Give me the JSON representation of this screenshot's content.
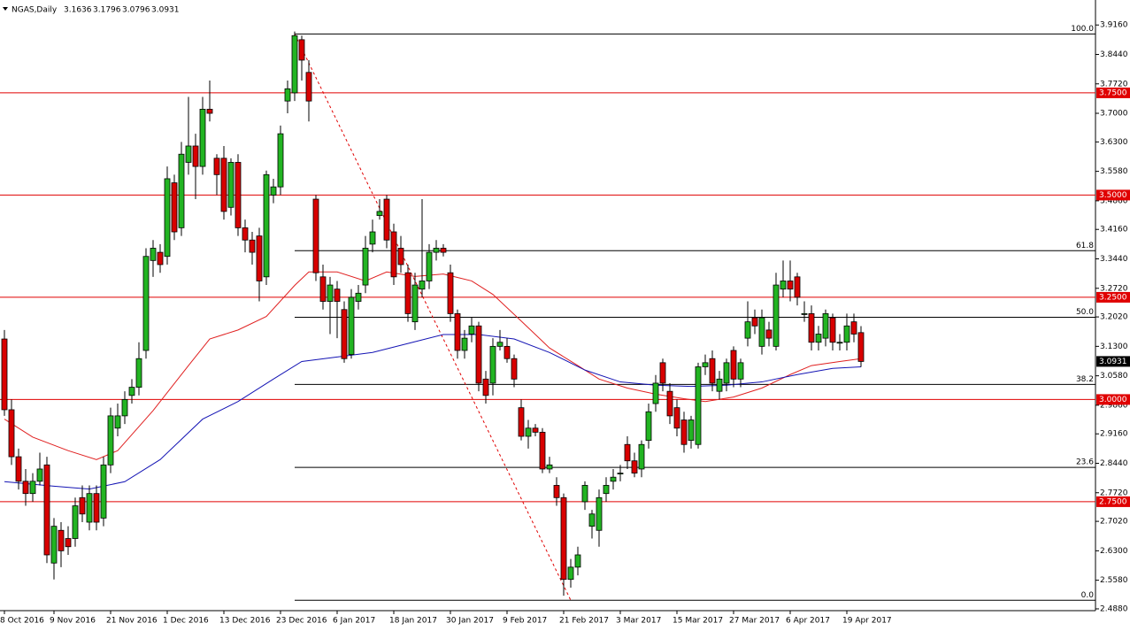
{
  "chart_data": {
    "type": "candlestick",
    "title": "NGAS,Daily",
    "categories": [
      "8 Oct 2016",
      null,
      null,
      null,
      null,
      null,
      null,
      "9 Nov 2016",
      null,
      null,
      null,
      null,
      null,
      null,
      null,
      "21 Nov 2016",
      null,
      null,
      null,
      null,
      null,
      null,
      null,
      "1 Dec 2016",
      null,
      null,
      null,
      null,
      null,
      null,
      null,
      "13 Dec 2016",
      null,
      null,
      null,
      null,
      null,
      null,
      null,
      "23 Dec 2016",
      null,
      null,
      null,
      null,
      null,
      null,
      null,
      "6 Jan 2017",
      null,
      null,
      null,
      null,
      null,
      null,
      null,
      "18 Jan 2017",
      null,
      null,
      null,
      null,
      null,
      null,
      null,
      "30 Jan 2017",
      null,
      null,
      null,
      null,
      null,
      null,
      null,
      "9 Feb 2017",
      null,
      null,
      null,
      null,
      null,
      null,
      null,
      "21 Feb 2017",
      null,
      null,
      null,
      null,
      null,
      null,
      null,
      "3 Mar 2017",
      null,
      null,
      null,
      null,
      null,
      null,
      null,
      "15 Mar 2017",
      null,
      null,
      null,
      null,
      null,
      null,
      null,
      "27 Mar 2017",
      null,
      null,
      null,
      null,
      null,
      null,
      null,
      "6 Apr 2017",
      null,
      null,
      null,
      null,
      null,
      null,
      null,
      "19 Apr 2017",
      null,
      null
    ],
    "open": [
      3.148,
      2.975,
      2.86,
      2.8,
      2.77,
      2.8,
      2.84,
      2.6,
      2.68,
      2.66,
      2.66,
      2.76,
      2.7,
      2.77,
      2.71,
      2.84,
      2.93,
      2.96,
      3.01,
      3.03,
      3.12,
      3.34,
      3.36,
      3.35,
      3.53,
      3.42,
      3.58,
      3.62,
      3.57,
      3.71,
      3.59,
      3.59,
      3.47,
      3.58,
      3.42,
      3.39,
      3.4,
      3.3,
      3.5,
      3.52,
      3.73,
      3.75,
      3.88,
      3.8,
      3.49,
      3.3,
      3.24,
      3.27,
      3.22,
      3.11,
      3.24,
      3.28,
      3.38,
      3.45,
      3.49,
      3.41,
      3.37,
      3.31,
      3.19,
      3.27,
      3.29,
      3.36,
      3.37,
      3.31,
      3.21,
      3.12,
      3.16,
      3.18,
      3.05,
      3.04,
      3.13,
      3.13,
      3.1,
      2.98,
      2.91,
      2.93,
      2.92,
      2.83,
      2.79,
      2.76,
      2.56,
      2.59,
      2.75,
      2.69,
      2.68,
      2.77,
      2.8,
      2.82,
      2.89,
      2.85,
      2.83,
      2.9,
      2.99,
      3.09,
      3.02,
      2.98,
      2.95,
      2.9,
      2.89,
      3.08,
      3.1,
      3.02,
      3.04,
      3.12,
      3.05,
      3.15,
      3.2,
      3.13,
      3.17,
      3.13,
      3.27,
      3.29,
      3.3,
      3.21,
      3.21,
      3.14,
      3.15,
      3.2,
      3.14,
      3.14,
      3.19,
      3.1636
    ],
    "high": [
      3.17,
      3.0,
      2.88,
      2.83,
      2.82,
      2.87,
      2.86,
      2.71,
      2.7,
      2.69,
      2.76,
      2.79,
      2.79,
      2.79,
      2.86,
      2.98,
      2.99,
      3.02,
      3.05,
      3.14,
      3.37,
      3.39,
      3.38,
      3.57,
      3.55,
      3.63,
      3.74,
      3.65,
      3.74,
      3.78,
      3.6,
      3.62,
      3.59,
      3.6,
      3.44,
      3.41,
      3.42,
      3.56,
      3.54,
      3.67,
      3.78,
      3.9,
      3.89,
      3.83,
      3.5,
      3.33,
      3.3,
      3.29,
      3.24,
      3.27,
      3.28,
      3.4,
      3.44,
      3.49,
      3.5,
      3.43,
      3.4,
      3.33,
      3.31,
      3.49,
      3.38,
      3.39,
      3.38,
      3.33,
      3.22,
      3.17,
      3.2,
      3.19,
      3.07,
      3.15,
      3.17,
      3.15,
      3.11,
      3.0,
      2.95,
      2.94,
      2.93,
      2.86,
      2.81,
      2.77,
      2.61,
      2.64,
      2.8,
      2.73,
      2.78,
      2.81,
      2.83,
      2.84,
      2.91,
      2.87,
      2.9,
      2.99,
      3.06,
      3.1,
      3.04,
      3.0,
      2.97,
      2.96,
      3.09,
      3.11,
      3.12,
      3.07,
      3.1,
      3.13,
      3.1,
      3.24,
      3.22,
      3.22,
      3.19,
      3.31,
      3.34,
      3.34,
      3.31,
      3.24,
      3.23,
      3.18,
      3.22,
      3.21,
      3.16,
      3.21,
      3.21,
      3.1796
    ],
    "low": [
      2.96,
      2.84,
      2.78,
      2.74,
      2.75,
      2.79,
      2.6,
      2.56,
      2.59,
      2.62,
      2.64,
      2.7,
      2.68,
      2.68,
      2.69,
      2.82,
      2.91,
      2.94,
      2.99,
      3.01,
      3.1,
      3.3,
      3.31,
      3.33,
      3.39,
      3.4,
      3.55,
      3.49,
      3.55,
      3.68,
      3.5,
      3.44,
      3.45,
      3.4,
      3.36,
      3.33,
      3.24,
      3.28,
      3.48,
      3.5,
      3.7,
      3.73,
      3.78,
      3.68,
      3.29,
      3.22,
      3.16,
      3.15,
      3.09,
      3.1,
      3.22,
      3.26,
      3.36,
      3.44,
      3.37,
      3.28,
      3.31,
      3.19,
      3.17,
      3.25,
      3.27,
      3.34,
      3.35,
      3.19,
      3.1,
      3.1,
      3.14,
      3.02,
      2.99,
      3.01,
      3.12,
      3.09,
      3.03,
      2.9,
      2.88,
      2.91,
      2.82,
      2.82,
      2.74,
      2.52,
      2.54,
      2.57,
      2.73,
      2.66,
      2.64,
      2.75,
      2.78,
      2.8,
      2.83,
      2.81,
      2.81,
      2.88,
      2.97,
      3.02,
      2.94,
      2.91,
      2.87,
      2.88,
      2.88,
      3.06,
      3.02,
      3.0,
      3.02,
      3.03,
      3.03,
      3.13,
      3.16,
      3.11,
      3.13,
      3.12,
      3.25,
      3.24,
      3.23,
      3.19,
      3.12,
      3.12,
      3.13,
      3.12,
      3.12,
      3.12,
      3.14,
      3.0796
    ],
    "close": [
      2.975,
      2.86,
      2.8,
      2.77,
      2.8,
      2.83,
      2.62,
      2.69,
      2.63,
      2.64,
      2.74,
      2.72,
      2.77,
      2.7,
      2.84,
      2.96,
      2.96,
      3.0,
      3.03,
      3.1,
      3.35,
      3.37,
      3.33,
      3.54,
      3.41,
      3.6,
      3.62,
      3.57,
      3.71,
      3.7,
      3.55,
      3.46,
      3.58,
      3.42,
      3.39,
      3.36,
      3.29,
      3.55,
      3.52,
      3.65,
      3.76,
      3.89,
      3.83,
      3.73,
      3.31,
      3.24,
      3.28,
      3.24,
      3.1,
      3.25,
      3.26,
      3.37,
      3.41,
      3.46,
      3.39,
      3.3,
      3.33,
      3.21,
      3.28,
      3.29,
      3.36,
      3.37,
      3.36,
      3.21,
      3.12,
      3.15,
      3.18,
      3.04,
      3.01,
      3.13,
      3.14,
      3.1,
      3.05,
      2.91,
      2.93,
      2.92,
      2.83,
      2.84,
      2.76,
      2.56,
      2.59,
      2.62,
      2.79,
      2.72,
      2.76,
      2.79,
      2.81,
      2.82,
      2.85,
      2.82,
      2.89,
      2.97,
      3.04,
      3.04,
      2.96,
      2.93,
      2.89,
      2.95,
      3.08,
      3.09,
      3.04,
      3.05,
      3.09,
      3.05,
      3.09,
      3.19,
      3.18,
      3.2,
      3.15,
      3.28,
      3.29,
      3.27,
      3.25,
      3.21,
      3.14,
      3.16,
      3.21,
      3.14,
      3.14,
      3.18,
      3.16,
      3.0931
    ],
    "up_color": "#22b422",
    "down_color": "#d80000",
    "ma_lines": [
      {
        "color": "#e02020",
        "x": [
          0,
          4,
          9,
          13,
          16,
          21,
          26,
          29,
          33,
          37,
          41,
          43,
          47,
          51,
          54,
          58,
          62,
          66,
          69,
          73,
          77,
          81,
          84,
          88,
          92,
          96,
          99,
          103,
          107,
          111,
          114,
          118,
          121
        ],
        "values": [
          2.952,
          2.908,
          2.875,
          2.853,
          2.875,
          2.973,
          3.083,
          3.148,
          3.17,
          3.203,
          3.279,
          3.312,
          3.312,
          3.29,
          3.312,
          3.301,
          3.307,
          3.29,
          3.257,
          3.192,
          3.126,
          3.083,
          3.05,
          3.028,
          3.013,
          3.002,
          2.995,
          3.006,
          3.028,
          3.061,
          3.083,
          3.093,
          3.1
        ]
      },
      {
        "color": "#1414b4",
        "x": [
          0,
          7,
          12,
          17,
          22,
          28,
          33,
          38,
          42,
          47,
          52,
          57,
          62,
          67,
          72,
          77,
          82,
          87,
          92,
          97,
          102,
          107,
          112,
          117,
          121
        ],
        "values": [
          2.799,
          2.788,
          2.781,
          2.799,
          2.853,
          2.952,
          2.995,
          3.05,
          3.093,
          3.104,
          3.115,
          3.137,
          3.159,
          3.159,
          3.148,
          3.115,
          3.072,
          3.043,
          3.035,
          3.032,
          3.035,
          3.043,
          3.061,
          3.076,
          3.08
        ]
      }
    ],
    "levels": [
      {
        "value": 3.75,
        "label": "3.7500"
      },
      {
        "value": 3.5,
        "label": "3.5000"
      },
      {
        "value": 3.25,
        "label": "3.2500"
      },
      {
        "value": 3.0,
        "label": "3.0000"
      },
      {
        "value": 2.75,
        "label": "2.7500"
      }
    ],
    "level_color": "#e00000",
    "fibonacci": {
      "start_index": 41,
      "end_index": 80,
      "levels": [
        {
          "value": 3.894,
          "label": "100.0"
        },
        {
          "value": 3.364,
          "label": "61.8"
        },
        {
          "value": 3.201,
          "label": "50.0"
        },
        {
          "value": 3.037,
          "label": "38.2"
        },
        {
          "value": 2.834,
          "label": "23.6"
        },
        {
          "value": 2.509,
          "label": "0.0"
        }
      ]
    },
    "ylim": [
      2.4836,
      3.9771
    ],
    "yticks": [
      {
        "value": 3.916,
        "label": "3.9160"
      },
      {
        "value": 3.844,
        "label": "3.8440"
      },
      {
        "value": 3.772,
        "label": "3.7720"
      },
      {
        "value": 3.7,
        "label": "3.7000"
      },
      {
        "value": 3.63,
        "label": "3.6300"
      },
      {
        "value": 3.558,
        "label": "3.5580"
      },
      {
        "value": 3.486,
        "label": "3.4860"
      },
      {
        "value": 3.416,
        "label": "3.4160"
      },
      {
        "value": 3.344,
        "label": "3.3440"
      },
      {
        "value": 3.272,
        "label": "3.2720"
      },
      {
        "value": 3.202,
        "label": "3.2020"
      },
      {
        "value": 3.13,
        "label": "3.1300"
      },
      {
        "value": 3.058,
        "label": "3.0580"
      },
      {
        "value": 2.986,
        "label": "2.9860"
      },
      {
        "value": 2.916,
        "label": "2.9160"
      },
      {
        "value": 2.844,
        "label": "2.8440"
      },
      {
        "value": 2.772,
        "label": "2.7720"
      },
      {
        "value": 2.702,
        "label": "2.7020"
      },
      {
        "value": 2.63,
        "label": "2.6300"
      },
      {
        "value": 2.558,
        "label": "2.5580"
      },
      {
        "value": 2.488,
        "label": "2.4880"
      }
    ]
  }
}
